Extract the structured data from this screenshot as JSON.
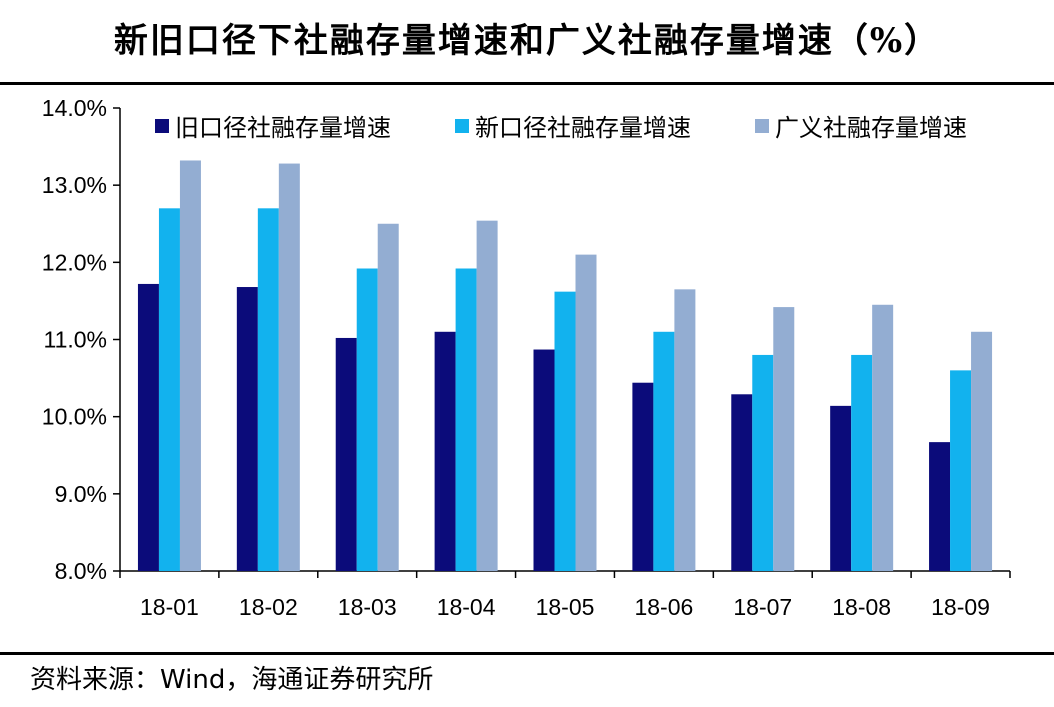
{
  "title": "新旧口径下社融存量增速和广义社融存量增速（%）",
  "source": "资料来源：Wind，海通证券研究所",
  "chart_data": {
    "type": "bar",
    "title": "新旧口径下社融存量增速和广义社融存量增速（%）",
    "xlabel": "",
    "ylabel": "",
    "ylim": [
      8.0,
      14.0
    ],
    "yticks": [
      "8.0%",
      "9.0%",
      "10.0%",
      "11.0%",
      "12.0%",
      "13.0%",
      "14.0%"
    ],
    "ytick_values": [
      8,
      9,
      10,
      11,
      12,
      13,
      14
    ],
    "categories": [
      "18-01",
      "18-02",
      "18-03",
      "18-04",
      "18-05",
      "18-06",
      "18-07",
      "18-08",
      "18-09"
    ],
    "legend_position": "top",
    "series": [
      {
        "name": "旧口径社融存量增速",
        "color": "#0B0B7A",
        "values": [
          11.72,
          11.68,
          11.02,
          11.1,
          10.87,
          10.44,
          10.29,
          10.14,
          9.67
        ]
      },
      {
        "name": "新口径社融存量增速",
        "color": "#12B2EE",
        "values": [
          12.7,
          12.7,
          11.92,
          11.92,
          11.62,
          11.1,
          10.8,
          10.8,
          10.6
        ]
      },
      {
        "name": "广义社融存量增速",
        "color": "#93ADD2",
        "values": [
          13.32,
          13.28,
          12.5,
          12.54,
          12.1,
          11.65,
          11.42,
          11.45,
          11.1
        ]
      }
    ]
  }
}
